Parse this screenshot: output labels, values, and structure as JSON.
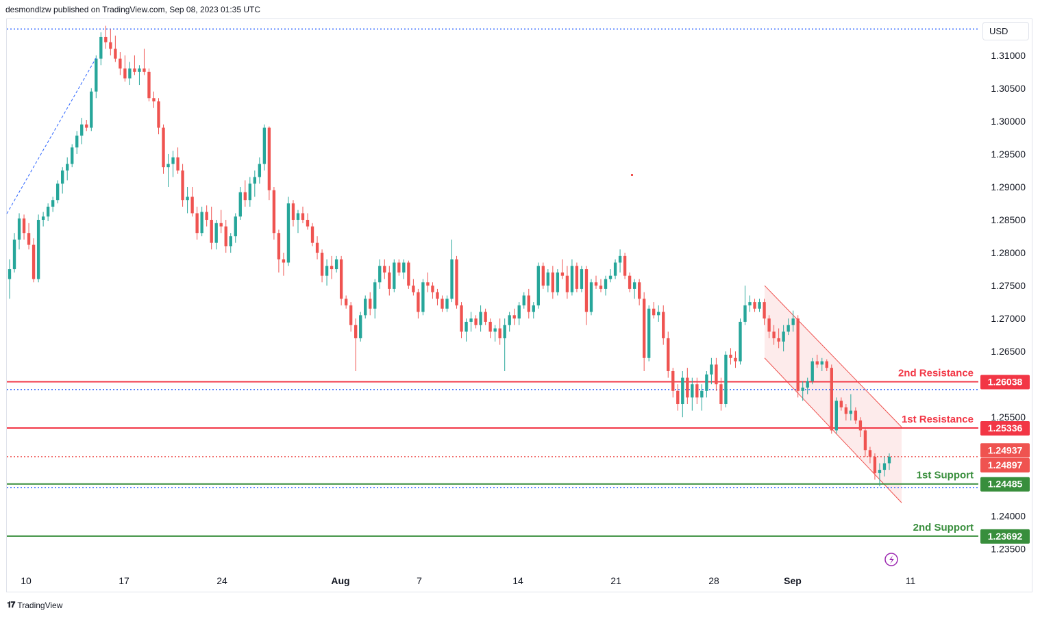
{
  "header": {
    "published": "desmondlzw published on TradingView.com, Sep 08, 2023 01:35 UTC"
  },
  "currency_button": {
    "label": "USD"
  },
  "footer": {
    "brand": "TradingView"
  },
  "colors": {
    "up": "#26a69a",
    "down": "#ef5350",
    "resistance": "#f23645",
    "support": "#388e3c",
    "dotted": "#2962ff",
    "channel": "#f8c6c6"
  },
  "chart_data": {
    "type": "candlestick",
    "ylim": [
      1.2315,
      1.3155
    ],
    "y_ticks": [
      "1.31000",
      "1.30500",
      "1.30000",
      "1.29500",
      "1.29000",
      "1.28500",
      "1.28000",
      "1.27500",
      "1.27000",
      "1.26500",
      "1.25500",
      "1.24000",
      "1.23500"
    ],
    "x_ticks": [
      "10",
      "17",
      "24",
      "Aug",
      "7",
      "14",
      "21",
      "28",
      "Sep",
      "11"
    ],
    "levels": [
      {
        "name": "2nd Resistance",
        "price": 1.26038,
        "label": "1.26038",
        "kind": "resistance"
      },
      {
        "name": "1st Resistance",
        "price": 1.25336,
        "label": "1.25336",
        "kind": "resistance"
      },
      {
        "name": "1st Support",
        "price": 1.24485,
        "label": "1.24485",
        "kind": "support"
      },
      {
        "name": "2nd Support",
        "price": 1.23692,
        "label": "1.23692",
        "kind": "support"
      }
    ],
    "price_tags": [
      {
        "label": "1.24937",
        "price": 1.24937
      },
      {
        "label": "1.24897",
        "price": 1.24897
      }
    ],
    "dotted_lines": [
      1.314,
      1.2592,
      1.2443,
      1.249
    ],
    "channel": {
      "upper": [
        [
          1.275,
          1.2535
        ],
        [
          1.2742,
          1.2536
        ]
      ],
      "note": ""
    },
    "candles": [
      [
        1.276,
        1.279,
        1.273,
        1.2775
      ],
      [
        1.2775,
        1.283,
        1.277,
        1.282
      ],
      [
        1.282,
        1.286,
        1.2805,
        1.2852
      ],
      [
        1.2852,
        1.2858,
        1.282,
        1.283
      ],
      [
        1.283,
        1.2845,
        1.2805,
        1.2812
      ],
      [
        1.2812,
        1.2822,
        1.2755,
        1.276
      ],
      [
        1.276,
        1.2858,
        1.2755,
        1.285
      ],
      [
        1.285,
        1.2862,
        1.284,
        1.2855
      ],
      [
        1.2855,
        1.2875,
        1.2848,
        1.287
      ],
      [
        1.287,
        1.2885,
        1.2862,
        1.288
      ],
      [
        1.288,
        1.291,
        1.2875,
        1.2905
      ],
      [
        1.2905,
        1.293,
        1.289,
        1.2925
      ],
      [
        1.2925,
        1.2945,
        1.291,
        1.2935
      ],
      [
        1.2935,
        1.2965,
        1.293,
        1.296
      ],
      [
        1.296,
        1.2985,
        1.295,
        1.2978
      ],
      [
        1.2978,
        1.3005,
        1.2965,
        1.2995
      ],
      [
        1.2995,
        1.3002,
        1.2985,
        1.299
      ],
      [
        1.299,
        1.305,
        1.2985,
        1.3045
      ],
      [
        1.3045,
        1.31,
        1.3035,
        1.3095
      ],
      [
        1.3095,
        1.3135,
        1.3085,
        1.3128
      ],
      [
        1.3128,
        1.3145,
        1.311,
        1.312
      ],
      [
        1.312,
        1.314,
        1.31,
        1.311
      ],
      [
        1.311,
        1.313,
        1.309,
        1.3095
      ],
      [
        1.3095,
        1.3105,
        1.307,
        1.308
      ],
      [
        1.308,
        1.31,
        1.306,
        1.3065
      ],
      [
        1.3065,
        1.309,
        1.3055,
        1.308
      ],
      [
        1.308,
        1.31,
        1.307,
        1.3075
      ],
      [
        1.3075,
        1.3085,
        1.3055,
        1.308
      ],
      [
        1.308,
        1.311,
        1.307,
        1.3075
      ],
      [
        1.3075,
        1.308,
        1.303,
        1.3035
      ],
      [
        1.3035,
        1.3045,
        1.302,
        1.303
      ],
      [
        1.303,
        1.3035,
        1.298,
        1.299
      ],
      [
        1.299,
        1.2995,
        1.292,
        1.293
      ],
      [
        1.293,
        1.295,
        1.29,
        1.2935
      ],
      [
        1.2935,
        1.2955,
        1.2915,
        1.2945
      ],
      [
        1.2945,
        1.296,
        1.292,
        1.2925
      ],
      [
        1.2925,
        1.2935,
        1.287,
        1.288
      ],
      [
        1.288,
        1.29,
        1.286,
        1.2885
      ],
      [
        1.2885,
        1.29,
        1.2855,
        1.286
      ],
      [
        1.286,
        1.287,
        1.282,
        1.283
      ],
      [
        1.283,
        1.287,
        1.2825,
        1.2862
      ],
      [
        1.2862,
        1.2872,
        1.284,
        1.285
      ],
      [
        1.285,
        1.287,
        1.2805,
        1.2815
      ],
      [
        1.2815,
        1.285,
        1.2805,
        1.2845
      ],
      [
        1.2845,
        1.2865,
        1.283,
        1.284
      ],
      [
        1.284,
        1.285,
        1.28,
        1.281
      ],
      [
        1.281,
        1.283,
        1.28,
        1.2825
      ],
      [
        1.2825,
        1.286,
        1.2815,
        1.2855
      ],
      [
        1.2855,
        1.29,
        1.285,
        1.2892
      ],
      [
        1.2892,
        1.291,
        1.287,
        1.288
      ],
      [
        1.288,
        1.2915,
        1.287,
        1.2905
      ],
      [
        1.2905,
        1.2925,
        1.2885,
        1.2915
      ],
      [
        1.2915,
        1.2945,
        1.2905,
        1.2935
      ],
      [
        1.2935,
        1.2995,
        1.2925,
        1.299
      ],
      [
        1.299,
        1.2992,
        1.288,
        1.2895
      ],
      [
        1.2895,
        1.29,
        1.282,
        1.283
      ],
      [
        1.283,
        1.2835,
        1.277,
        1.279
      ],
      [
        1.279,
        1.28,
        1.2765,
        1.2785
      ],
      [
        1.2785,
        1.2885,
        1.278,
        1.2875
      ],
      [
        1.2875,
        1.288,
        1.284,
        1.285
      ],
      [
        1.285,
        1.2865,
        1.283,
        1.286
      ],
      [
        1.286,
        1.287,
        1.2845,
        1.285
      ],
      [
        1.285,
        1.286,
        1.2835,
        1.284
      ],
      [
        1.284,
        1.2845,
        1.281,
        1.2815
      ],
      [
        1.2815,
        1.2825,
        1.279,
        1.28
      ],
      [
        1.28,
        1.2805,
        1.2755,
        1.2765
      ],
      [
        1.2765,
        1.279,
        1.275,
        1.278
      ],
      [
        1.278,
        1.2795,
        1.276,
        1.2775
      ],
      [
        1.2775,
        1.2795,
        1.277,
        1.279
      ],
      [
        1.279,
        1.2795,
        1.272,
        1.273
      ],
      [
        1.273,
        1.2735,
        1.2715,
        1.272
      ],
      [
        1.272,
        1.2725,
        1.268,
        1.269
      ],
      [
        1.269,
        1.27,
        1.262,
        1.267
      ],
      [
        1.267,
        1.271,
        1.2665,
        1.2705
      ],
      [
        1.2705,
        1.2735,
        1.27,
        1.273
      ],
      [
        1.273,
        1.274,
        1.2705,
        1.2715
      ],
      [
        1.2715,
        1.276,
        1.27,
        1.2755
      ],
      [
        1.2755,
        1.279,
        1.2745,
        1.278
      ],
      [
        1.278,
        1.279,
        1.276,
        1.277
      ],
      [
        1.277,
        1.278,
        1.2735,
        1.2745
      ],
      [
        1.2745,
        1.279,
        1.274,
        1.2785
      ],
      [
        1.2785,
        1.279,
        1.2765,
        1.277
      ],
      [
        1.277,
        1.279,
        1.276,
        1.2785
      ],
      [
        1.2785,
        1.2788,
        1.2745,
        1.275
      ],
      [
        1.275,
        1.276,
        1.2735,
        1.274
      ],
      [
        1.274,
        1.2745,
        1.27,
        1.271
      ],
      [
        1.271,
        1.276,
        1.2705,
        1.2755
      ],
      [
        1.2755,
        1.277,
        1.274,
        1.275
      ],
      [
        1.275,
        1.2755,
        1.273,
        1.274
      ],
      [
        1.274,
        1.2745,
        1.272,
        1.273
      ],
      [
        1.273,
        1.2735,
        1.271,
        1.2715
      ],
      [
        1.2715,
        1.2735,
        1.271,
        1.273
      ],
      [
        1.273,
        1.282,
        1.2725,
        1.279
      ],
      [
        1.279,
        1.2795,
        1.2715,
        1.272
      ],
      [
        1.272,
        1.2725,
        1.267,
        1.268
      ],
      [
        1.268,
        1.27,
        1.2665,
        1.2695
      ],
      [
        1.2695,
        1.271,
        1.268,
        1.27
      ],
      [
        1.27,
        1.2705,
        1.2685,
        1.269
      ],
      [
        1.269,
        1.272,
        1.268,
        1.271
      ],
      [
        1.271,
        1.2715,
        1.269,
        1.2695
      ],
      [
        1.2695,
        1.27,
        1.267,
        1.268
      ],
      [
        1.268,
        1.269,
        1.2665,
        1.2685
      ],
      [
        1.2685,
        1.27,
        1.266,
        1.267
      ],
      [
        1.267,
        1.27,
        1.262,
        1.269
      ],
      [
        1.269,
        1.271,
        1.268,
        1.2705
      ],
      [
        1.2705,
        1.2715,
        1.269,
        1.27
      ],
      [
        1.27,
        1.2725,
        1.269,
        1.272
      ],
      [
        1.272,
        1.274,
        1.2715,
        1.2735
      ],
      [
        1.2735,
        1.2745,
        1.27,
        1.271
      ],
      [
        1.271,
        1.2725,
        1.27,
        1.272
      ],
      [
        1.272,
        1.2785,
        1.2715,
        1.278
      ],
      [
        1.278,
        1.2785,
        1.2745,
        1.275
      ],
      [
        1.275,
        1.2775,
        1.274,
        1.277
      ],
      [
        1.277,
        1.278,
        1.273,
        1.274
      ],
      [
        1.274,
        1.2775,
        1.2735,
        1.277
      ],
      [
        1.277,
        1.279,
        1.276,
        1.2765
      ],
      [
        1.2765,
        1.278,
        1.273,
        1.274
      ],
      [
        1.274,
        1.279,
        1.2735,
        1.278
      ],
      [
        1.278,
        1.2785,
        1.274,
        1.2745
      ],
      [
        1.2745,
        1.278,
        1.274,
        1.2775
      ],
      [
        1.2775,
        1.278,
        1.269,
        1.271
      ],
      [
        1.271,
        1.276,
        1.2705,
        1.2755
      ],
      [
        1.2755,
        1.2765,
        1.2745,
        1.275
      ],
      [
        1.275,
        1.276,
        1.274,
        1.2745
      ],
      [
        1.2745,
        1.2765,
        1.2735,
        1.276
      ],
      [
        1.276,
        1.2775,
        1.2755,
        1.2765
      ],
      [
        1.2765,
        1.279,
        1.276,
        1.2785
      ],
      [
        1.2785,
        1.2805,
        1.277,
        1.2795
      ],
      [
        1.2795,
        1.28,
        1.276,
        1.2765
      ],
      [
        1.2765,
        1.277,
        1.274,
        1.2745
      ],
      [
        1.2745,
        1.276,
        1.273,
        1.2755
      ],
      [
        1.2755,
        1.276,
        1.272,
        1.273
      ],
      [
        1.273,
        1.274,
        1.262,
        1.264
      ],
      [
        1.264,
        1.272,
        1.2635,
        1.2715
      ],
      [
        1.2715,
        1.2725,
        1.27,
        1.2705
      ],
      [
        1.2705,
        1.272,
        1.2695,
        1.271
      ],
      [
        1.271,
        1.272,
        1.266,
        1.267
      ],
      [
        1.267,
        1.268,
        1.261,
        1.262
      ],
      [
        1.262,
        1.2625,
        1.258,
        1.259
      ],
      [
        1.259,
        1.26,
        1.256,
        1.257
      ],
      [
        1.257,
        1.262,
        1.255,
        1.261
      ],
      [
        1.261,
        1.2625,
        1.257,
        1.258
      ],
      [
        1.258,
        1.261,
        1.256,
        1.26
      ],
      [
        1.26,
        1.261,
        1.257,
        1.258
      ],
      [
        1.258,
        1.26,
        1.256,
        1.259
      ],
      [
        1.259,
        1.262,
        1.258,
        1.2615
      ],
      [
        1.2615,
        1.264,
        1.26,
        1.263
      ],
      [
        1.263,
        1.264,
        1.259,
        1.26
      ],
      [
        1.26,
        1.261,
        1.256,
        1.257
      ],
      [
        1.257,
        1.265,
        1.2565,
        1.2645
      ],
      [
        1.2645,
        1.2655,
        1.263,
        1.264
      ],
      [
        1.264,
        1.265,
        1.2625,
        1.2635
      ],
      [
        1.2635,
        1.27,
        1.263,
        1.2695
      ],
      [
        1.2695,
        1.275,
        1.269,
        1.272
      ],
      [
        1.272,
        1.2735,
        1.271,
        1.2725
      ],
      [
        1.2725,
        1.273,
        1.271,
        1.2715
      ],
      [
        1.2715,
        1.273,
        1.271,
        1.2725
      ],
      [
        1.2725,
        1.273,
        1.269,
        1.27
      ],
      [
        1.27,
        1.2705,
        1.267,
        1.268
      ],
      [
        1.268,
        1.269,
        1.266,
        1.267
      ],
      [
        1.267,
        1.2685,
        1.2655,
        1.2665
      ],
      [
        1.2665,
        1.269,
        1.265,
        1.268
      ],
      [
        1.268,
        1.27,
        1.2675,
        1.269
      ],
      [
        1.269,
        1.2712,
        1.268,
        1.27
      ],
      [
        1.27,
        1.2705,
        1.258,
        1.259
      ],
      [
        1.259,
        1.2605,
        1.2575,
        1.2595
      ],
      [
        1.2595,
        1.261,
        1.2585,
        1.2605
      ],
      [
        1.2605,
        1.264,
        1.26,
        1.2635
      ],
      [
        1.2635,
        1.2645,
        1.2625,
        1.263
      ],
      [
        1.263,
        1.264,
        1.262,
        1.2635
      ],
      [
        1.2635,
        1.2638,
        1.262,
        1.2625
      ],
      [
        1.2625,
        1.263,
        1.2525,
        1.253
      ],
      [
        1.253,
        1.258,
        1.2525,
        1.2575
      ],
      [
        1.2575,
        1.258,
        1.256,
        1.2565
      ],
      [
        1.2565,
        1.257,
        1.2545,
        1.2555
      ],
      [
        1.2555,
        1.2585,
        1.2545,
        1.256
      ],
      [
        1.256,
        1.2565,
        1.254,
        1.2545
      ],
      [
        1.2545,
        1.255,
        1.252,
        1.253
      ],
      [
        1.253,
        1.2535,
        1.249,
        1.25
      ],
      [
        1.25,
        1.2505,
        1.248,
        1.249
      ],
      [
        1.249,
        1.2495,
        1.2455,
        1.2465
      ],
      [
        1.2465,
        1.248,
        1.2445,
        1.247
      ],
      [
        1.247,
        1.249,
        1.246,
        1.248
      ],
      [
        1.248,
        1.2495,
        1.247,
        1.249
      ]
    ]
  }
}
